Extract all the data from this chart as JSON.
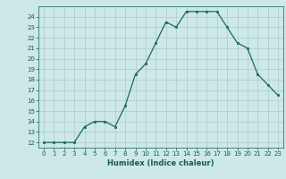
{
  "x": [
    0,
    1,
    2,
    3,
    4,
    5,
    6,
    7,
    8,
    9,
    10,
    11,
    12,
    13,
    14,
    15,
    16,
    17,
    18,
    19,
    20,
    21,
    22,
    23
  ],
  "y": [
    12,
    12,
    12,
    12,
    13.5,
    14,
    14,
    13.5,
    15.5,
    18.5,
    19.5,
    21.5,
    23.5,
    23,
    24.5,
    24.5,
    24.5,
    24.5,
    23,
    21.5,
    21,
    18.5,
    17.5,
    16.5
  ],
  "xlabel": "Humidex (Indice chaleur)",
  "ylim_min": 11.5,
  "ylim_max": 25.0,
  "xlim_min": -0.5,
  "xlim_max": 23.5,
  "yticks": [
    12,
    13,
    14,
    15,
    16,
    17,
    18,
    19,
    20,
    21,
    22,
    23,
    24
  ],
  "xticks": [
    0,
    1,
    2,
    3,
    4,
    5,
    6,
    7,
    8,
    9,
    10,
    11,
    12,
    13,
    14,
    15,
    16,
    17,
    18,
    19,
    20,
    21,
    22,
    23
  ],
  "line_color": "#1a6b5a",
  "marker_color": "#1a6b5a",
  "bg_color": "#cce8e8",
  "grid_color": "#b0c8c8",
  "tick_label_color": "#1a5a4a",
  "xlabel_color": "#1a5a4a",
  "spine_color": "#2a7a6a"
}
